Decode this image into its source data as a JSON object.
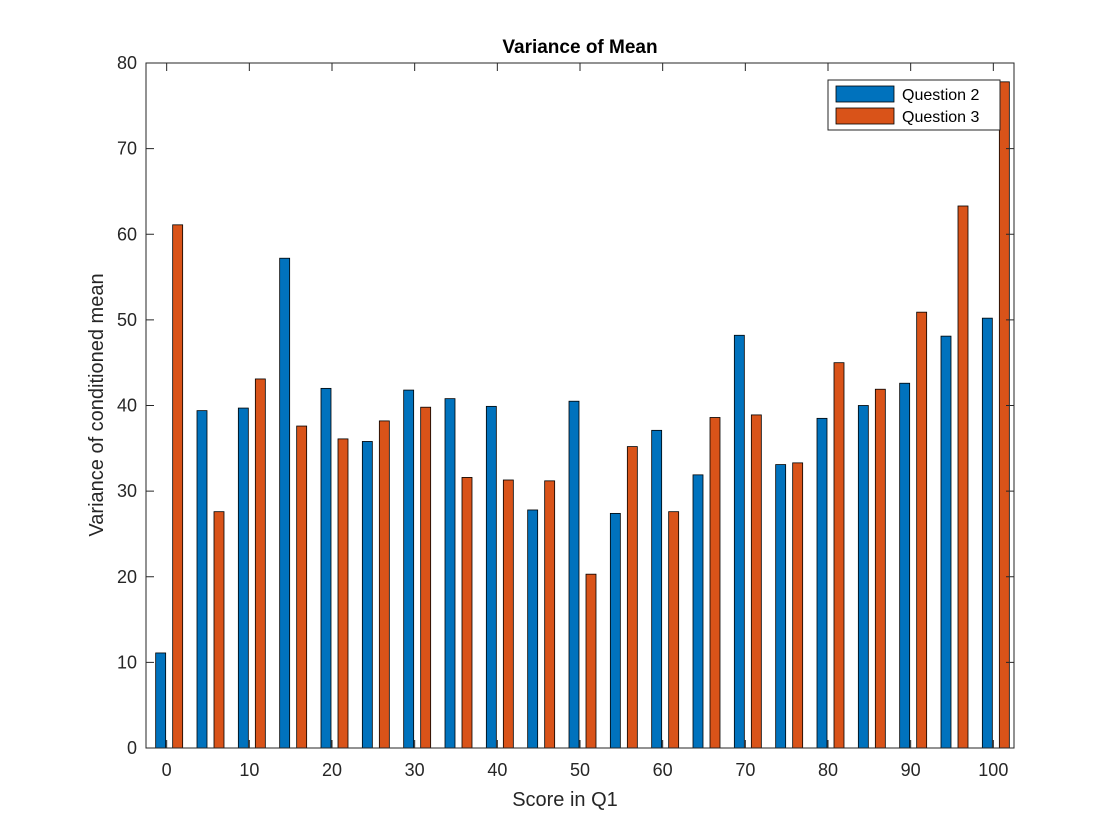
{
  "chart_data": {
    "type": "bar",
    "title": "Variance of Mean",
    "xlabel": "Score in Q1",
    "ylabel": "Variance of conditioned mean",
    "x": [
      0,
      5,
      10,
      15,
      20,
      25,
      30,
      35,
      40,
      45,
      50,
      55,
      60,
      65,
      70,
      75,
      80,
      85,
      90,
      95,
      100
    ],
    "xlim": [
      -2.5,
      102.5
    ],
    "ylim": [
      0,
      80
    ],
    "xticks": [
      "0",
      "10",
      "20",
      "30",
      "40",
      "50",
      "60",
      "70",
      "80",
      "90",
      "100"
    ],
    "yticks": [
      "0",
      "10",
      "20",
      "30",
      "40",
      "50",
      "60",
      "70",
      "80"
    ],
    "grid": false,
    "legend_position": "top-right",
    "series": [
      {
        "name": "Question 2",
        "color": "#0072BD",
        "values": [
          11.1,
          39.4,
          39.7,
          57.2,
          42.0,
          35.8,
          41.8,
          40.8,
          39.9,
          27.8,
          40.5,
          27.4,
          37.1,
          31.9,
          48.2,
          33.1,
          38.5,
          40.0,
          42.6,
          48.1,
          50.2
        ]
      },
      {
        "name": "Question 3",
        "color": "#D95319",
        "values": [
          61.1,
          27.6,
          43.1,
          37.6,
          36.1,
          38.2,
          39.8,
          31.6,
          31.3,
          31.2,
          20.3,
          35.2,
          27.6,
          38.6,
          38.9,
          33.3,
          45.0,
          41.9,
          50.9,
          63.3,
          77.8
        ]
      }
    ]
  }
}
